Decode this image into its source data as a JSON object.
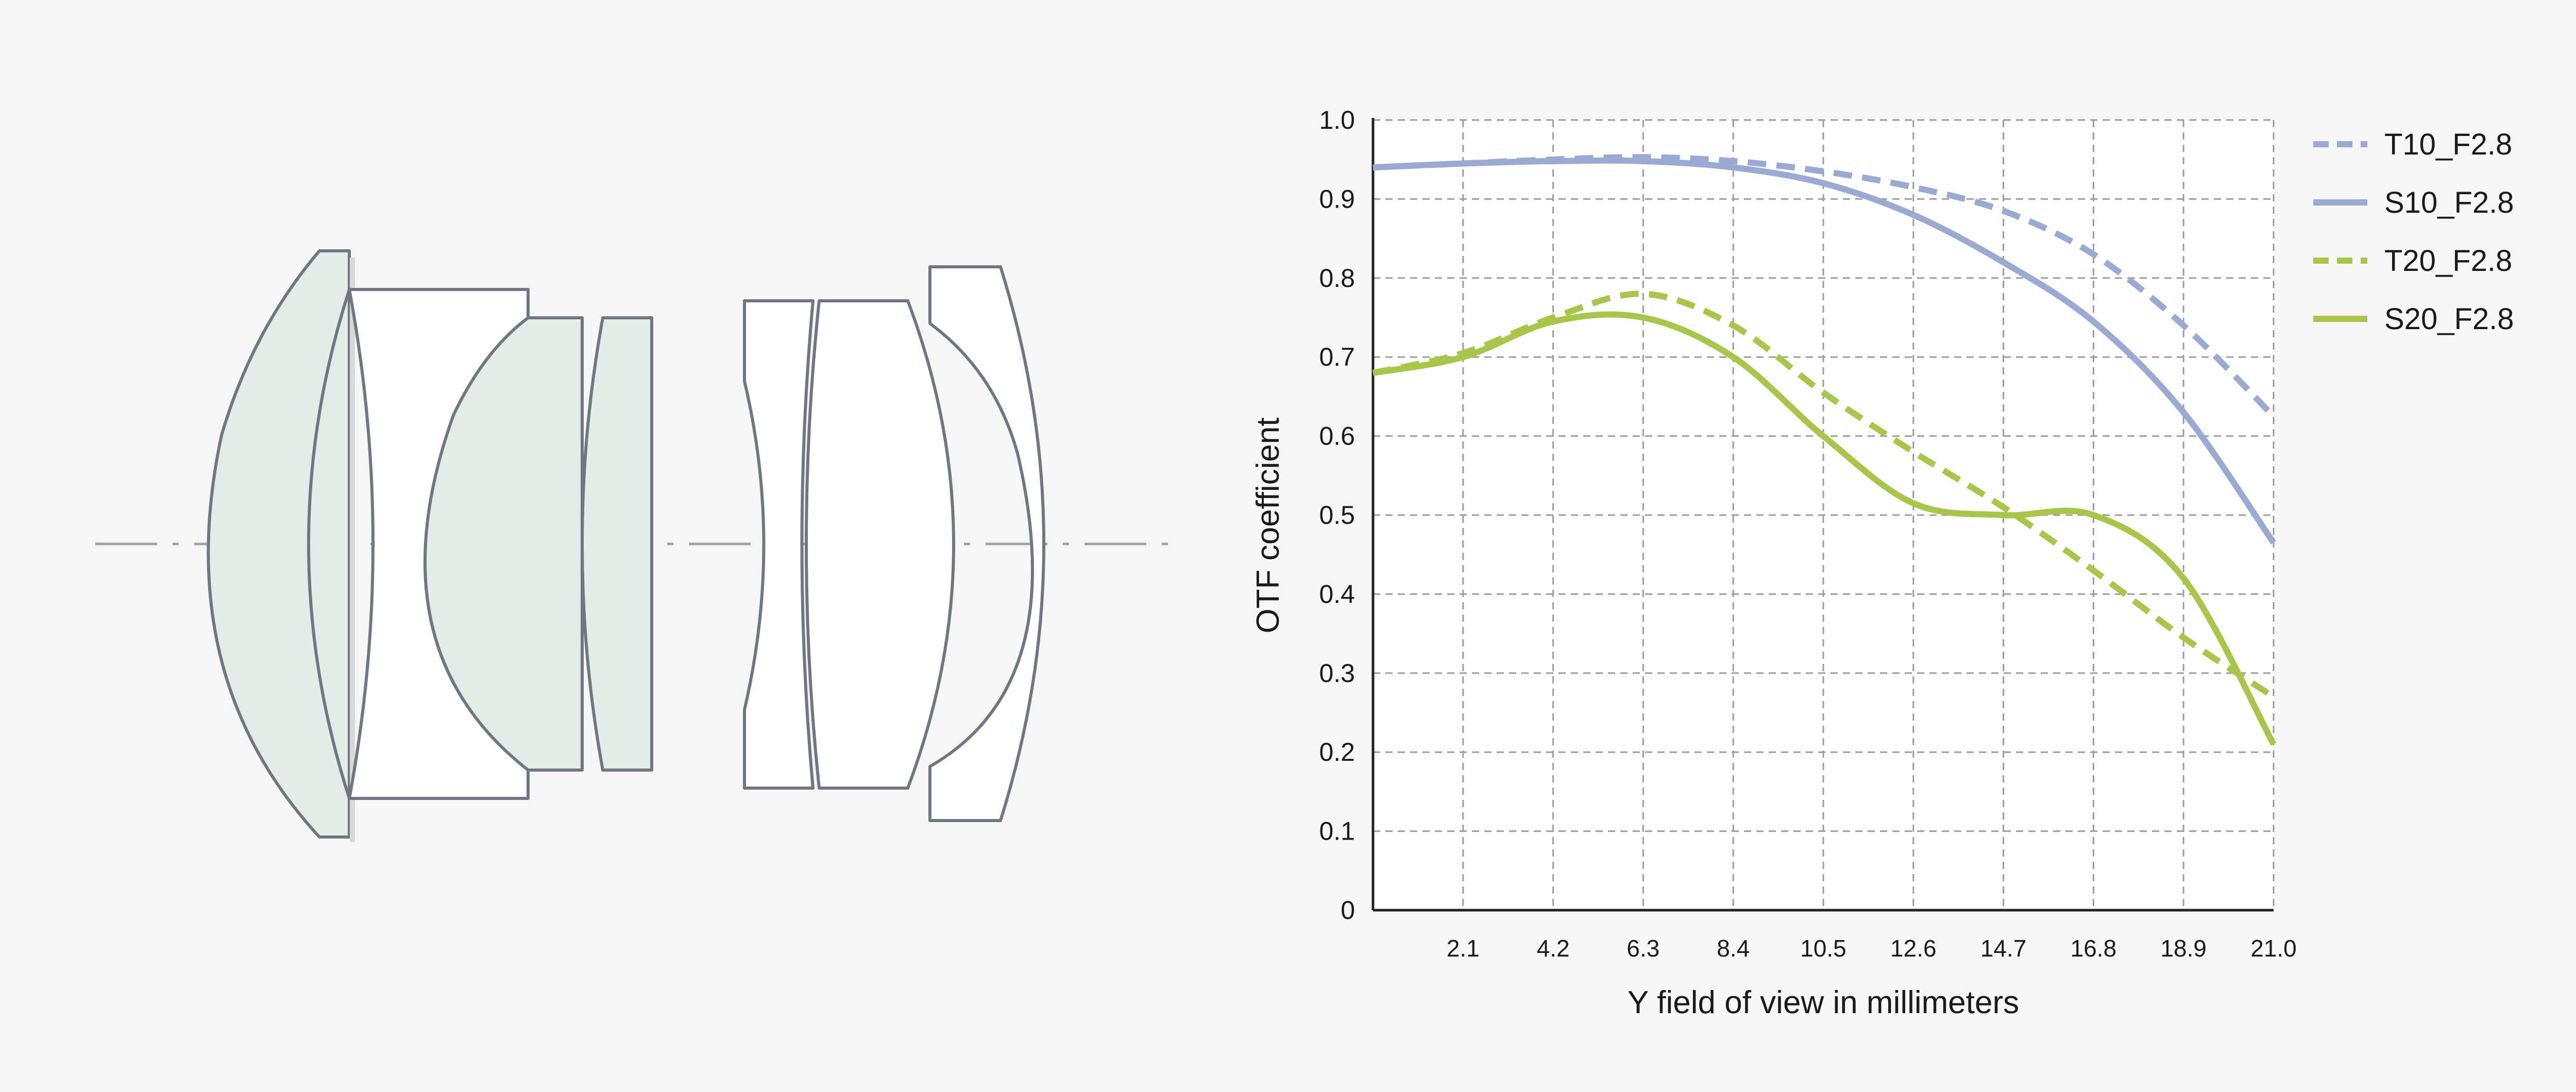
{
  "colors": {
    "background": "#f6f6f6",
    "plot_background": "#ffffff",
    "blue": "#9aaad2",
    "green": "#a7c64a",
    "lens_fill_tinted": "#e3ece6",
    "lens_fill_plain": "#ffffff",
    "lens_outline": "#6f7880",
    "optical_axis": "#9aa7a4"
  },
  "lens_diagram": {
    "description_icon": "lens-cross-section-icon"
  },
  "chart_data": {
    "type": "line",
    "title": "",
    "xlabel": "Y field of view in millimeters",
    "ylabel": "OTF coefficient",
    "xlim": [
      0,
      21.0
    ],
    "ylim": [
      0,
      1.0
    ],
    "x_ticks": [
      "2.1",
      "4.2",
      "6.3",
      "8.4",
      "10.5",
      "12.6",
      "14.7",
      "16.8",
      "18.9",
      "21.0"
    ],
    "y_ticks": [
      "0",
      "0.1",
      "0.2",
      "0.3",
      "0.4",
      "0.5",
      "0.6",
      "0.7",
      "0.8",
      "0.9",
      "1.0"
    ],
    "grid": true,
    "legend_position": "right",
    "series": [
      {
        "name": "T10_F2.8",
        "color": "#9aaad2",
        "dashed": true,
        "x": [
          0,
          2.1,
          4.2,
          6.3,
          8.4,
          10.5,
          12.6,
          14.7,
          16.8,
          18.9,
          21.0
        ],
        "y": [
          0.94,
          0.945,
          0.95,
          0.953,
          0.948,
          0.935,
          0.915,
          0.885,
          0.83,
          0.74,
          0.625
        ]
      },
      {
        "name": "S10_F2.8",
        "color": "#9aaad2",
        "dashed": false,
        "x": [
          0,
          2.1,
          4.2,
          6.3,
          8.4,
          10.5,
          12.6,
          14.7,
          16.8,
          18.9,
          21.0
        ],
        "y": [
          0.94,
          0.945,
          0.948,
          0.948,
          0.94,
          0.92,
          0.88,
          0.82,
          0.745,
          0.63,
          0.465
        ]
      },
      {
        "name": "T20_F2.8",
        "color": "#a7c64a",
        "dashed": true,
        "x": [
          0,
          2.1,
          4.2,
          6.3,
          8.4,
          10.5,
          12.6,
          14.7,
          16.8,
          18.9,
          21.0
        ],
        "y": [
          0.68,
          0.705,
          0.75,
          0.78,
          0.74,
          0.655,
          0.58,
          0.51,
          0.43,
          0.345,
          0.27
        ]
      },
      {
        "name": "S20_F2.8",
        "color": "#a7c64a",
        "dashed": false,
        "x": [
          0,
          2.1,
          4.2,
          6.3,
          8.4,
          10.5,
          12.6,
          14.7,
          16.8,
          18.9,
          21.0
        ],
        "y": [
          0.68,
          0.7,
          0.745,
          0.75,
          0.7,
          0.6,
          0.515,
          0.5,
          0.5,
          0.42,
          0.21
        ]
      }
    ]
  }
}
